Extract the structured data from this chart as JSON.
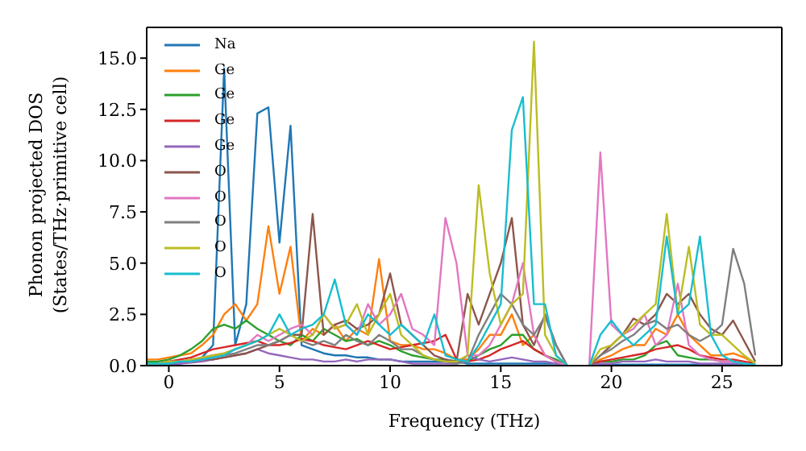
{
  "chart_data": {
    "type": "line",
    "xlabel": "Frequency (THz)",
    "ylabel": "Phonon projected DOS\n(States/THz·primitive cell)",
    "legend": "top left",
    "xlim": [
      -1,
      27.7
    ],
    "xticks": [
      0,
      5,
      10,
      15,
      20,
      25
    ],
    "ylim": [
      0,
      16.5
    ],
    "yticks": [
      {
        "value": 0,
        "label": "0.0"
      },
      2.5,
      {
        "value": 5,
        "label": "5.0"
      },
      7.5,
      {
        "value": 10,
        "label": "10.0"
      },
      12.5,
      {
        "value": 15,
        "label": "15.0"
      }
    ],
    "x": [
      -1,
      -0.5,
      0,
      0.5,
      1,
      1.5,
      2,
      2.5,
      3,
      3.5,
      4,
      4.5,
      5,
      5.5,
      6,
      6.5,
      7,
      7.5,
      8,
      8.5,
      9,
      9.5,
      10,
      10.5,
      11,
      11.5,
      12,
      12.5,
      13,
      13.5,
      14,
      14.5,
      15,
      15.5,
      16,
      16.5,
      17,
      17.5,
      18,
      18.5,
      19,
      19.5,
      20,
      20.5,
      21,
      21.5,
      22,
      22.5,
      23,
      23.5,
      24,
      24.5,
      25,
      25.5,
      26,
      26.5
    ],
    "series": [
      {
        "name": "Na",
        "color": "#1f77b4",
        "values": [
          0.05,
          0.05,
          0.05,
          0.1,
          0.2,
          0.4,
          1.0,
          14.5,
          1.0,
          3.0,
          12.3,
          12.6,
          6.0,
          11.7,
          1.0,
          0.8,
          0.6,
          0.5,
          0.5,
          0.4,
          0.4,
          0.3,
          0.3,
          0.2,
          0.2,
          0.2,
          0.2,
          0.2,
          0.2,
          0.1,
          0.1,
          0.1,
          0.1,
          0.1,
          0.1,
          0.1,
          0.1,
          0.1,
          0,
          null,
          0,
          0.05,
          0.05,
          0.05,
          0.05,
          0.05,
          0.05,
          0.05,
          0.05,
          0.05,
          0.05,
          0.05,
          0.05,
          0.05,
          0.05,
          0.05
        ]
      },
      {
        "name": "Ge",
        "color": "#ff7f0e",
        "values": [
          0.3,
          0.3,
          0.4,
          0.5,
          0.6,
          1.0,
          1.5,
          2.5,
          3.0,
          2.2,
          3.0,
          6.8,
          3.5,
          5.8,
          1.2,
          1.8,
          1.5,
          2.0,
          1.2,
          1.8,
          1.5,
          5.2,
          1.2,
          1.0,
          1.0,
          0.8,
          0.8,
          0.6,
          0.3,
          0.3,
          0.8,
          1.5,
          1.5,
          2.5,
          1.0,
          1.5,
          0.5,
          0.2,
          0,
          null,
          0,
          0.3,
          0.5,
          0.8,
          1.0,
          1.0,
          1.8,
          1.5,
          2.5,
          1.5,
          1.0,
          0.5,
          0.5,
          0.6,
          0.4,
          0.1
        ]
      },
      {
        "name": "Ge",
        "color": "#2ca02c",
        "values": [
          0.2,
          0.2,
          0.3,
          0.5,
          0.8,
          1.2,
          1.8,
          2.0,
          1.8,
          2.2,
          1.8,
          1.5,
          1.2,
          1.0,
          1.5,
          1.2,
          1.8,
          1.5,
          1.2,
          1.3,
          1.0,
          1.2,
          1.0,
          0.7,
          0.5,
          0.4,
          0.3,
          0.3,
          0.2,
          0.2,
          0.5,
          0.8,
          1.0,
          1.5,
          1.5,
          0.8,
          0.5,
          0.3,
          0,
          null,
          0,
          0.2,
          0.2,
          0.3,
          0.3,
          0.5,
          1.0,
          1.2,
          0.5,
          0.4,
          0.3,
          0.3,
          0.2,
          0.2,
          0.1,
          0.05
        ]
      },
      {
        "name": "Ge",
        "color": "#d62728",
        "values": [
          0.1,
          0.1,
          0.2,
          0.3,
          0.4,
          0.6,
          0.8,
          0.9,
          1.0,
          1.1,
          1.2,
          1.0,
          1.0,
          1.1,
          1.3,
          1.2,
          1.0,
          0.9,
          0.8,
          1.0,
          1.2,
          1.0,
          0.8,
          0.9,
          1.0,
          1.1,
          1.2,
          1.5,
          0.3,
          0.2,
          0.3,
          0.5,
          0.8,
          1.0,
          1.2,
          0.8,
          0.5,
          0.2,
          0,
          null,
          0,
          0.2,
          0.3,
          0.4,
          0.5,
          0.6,
          0.8,
          0.9,
          1.0,
          0.8,
          0.5,
          0.4,
          0.3,
          0.3,
          0.2,
          0.1
        ]
      },
      {
        "name": "Ge",
        "color": "#9467bd",
        "values": [
          0.05,
          0.05,
          0.1,
          0.1,
          0.15,
          0.2,
          0.3,
          0.4,
          0.5,
          0.6,
          0.8,
          0.6,
          0.5,
          0.4,
          0.3,
          0.3,
          0.2,
          0.2,
          0.3,
          0.2,
          0.3,
          0.3,
          0.3,
          0.2,
          0.1,
          0.1,
          0.1,
          0.1,
          0.1,
          0.5,
          0.3,
          0.2,
          0.3,
          0.4,
          0.3,
          0.2,
          0.2,
          0.1,
          0,
          null,
          0,
          0.1,
          0.1,
          0.2,
          0.2,
          0.2,
          0.3,
          0.2,
          0.2,
          0.2,
          0.1,
          0.1,
          0.1,
          0.1,
          0.1,
          0.05
        ]
      },
      {
        "name": "O",
        "color": "#8c564b",
        "values": [
          null,
          null,
          0.1,
          0.2,
          0.2,
          0.3,
          0.3,
          0.4,
          0.5,
          0.6,
          0.8,
          1.0,
          1.2,
          1.5,
          1.5,
          7.4,
          1.5,
          2.0,
          2.2,
          1.8,
          2.0,
          2.5,
          4.5,
          2.0,
          1.5,
          1.0,
          0.5,
          0.3,
          0.2,
          3.5,
          2.0,
          3.5,
          5.0,
          7.2,
          2.0,
          1.0,
          2.5,
          1.0,
          0,
          null,
          0,
          0.5,
          1.0,
          1.5,
          2.3,
          2.0,
          2.5,
          3.5,
          3.0,
          3.5,
          2.5,
          1.8,
          1.5,
          2.2,
          1.2,
          0.2
        ]
      },
      {
        "name": "O",
        "color": "#e377c2",
        "values": [
          null,
          null,
          0.2,
          0.2,
          0.3,
          0.4,
          0.5,
          0.6,
          0.8,
          1.0,
          1.5,
          1.2,
          1.5,
          1.8,
          2.0,
          1.5,
          2.5,
          1.8,
          2.0,
          1.5,
          3.0,
          2.0,
          2.5,
          3.5,
          1.8,
          1.5,
          1.0,
          7.2,
          5.0,
          0.5,
          0.5,
          1.0,
          2.0,
          3.0,
          5.0,
          1.5,
          0.5,
          0.2,
          0,
          null,
          0,
          10.4,
          2.0,
          1.5,
          1.8,
          2.5,
          1.0,
          1.5,
          4.0,
          1.0,
          0.5,
          0.3,
          0.2,
          0.2,
          0.1,
          0.05
        ]
      },
      {
        "name": "O",
        "color": "#7f7f7f",
        "values": [
          0.1,
          0.1,
          0.1,
          0.2,
          0.2,
          0.3,
          0.4,
          0.5,
          0.6,
          0.8,
          1.0,
          1.0,
          1.2,
          1.5,
          1.2,
          1.0,
          1.2,
          1.0,
          1.5,
          1.2,
          1.0,
          1.5,
          1.2,
          0.8,
          0.8,
          0.5,
          0.3,
          0.2,
          0.1,
          0.2,
          1.5,
          2.5,
          3.5,
          3.0,
          2.0,
          1.5,
          2.4,
          1.0,
          0,
          null,
          0,
          0.5,
          0.8,
          1.2,
          1.5,
          2.0,
          2.2,
          1.8,
          2.0,
          1.5,
          1.2,
          1.5,
          2.0,
          5.7,
          4.0,
          0.5
        ]
      },
      {
        "name": "O",
        "color": "#bcbd22",
        "values": [
          0.1,
          0.1,
          0.2,
          0.2,
          0.3,
          0.4,
          0.5,
          0.6,
          0.8,
          1.0,
          1.2,
          1.5,
          1.8,
          1.5,
          1.2,
          1.5,
          2.5,
          1.8,
          2.0,
          3.0,
          1.5,
          2.5,
          3.5,
          1.5,
          1.0,
          0.5,
          0.3,
          0.2,
          0.2,
          0.5,
          8.8,
          4.5,
          2.0,
          3.0,
          3.5,
          15.8,
          1.5,
          0.5,
          0,
          null,
          0,
          0.8,
          1.0,
          1.5,
          2.0,
          2.5,
          3.0,
          7.4,
          2.5,
          5.8,
          2.0,
          1.5,
          1.5,
          1.0,
          0.5,
          0.1
        ]
      },
      {
        "name": "O",
        "color": "#17becf",
        "values": [
          0.1,
          0.1,
          0.1,
          0.2,
          0.2,
          0.3,
          0.4,
          0.5,
          0.8,
          1.0,
          1.2,
          1.5,
          2.5,
          1.5,
          1.8,
          2.0,
          2.5,
          4.2,
          2.0,
          1.5,
          2.5,
          2.0,
          1.5,
          2.0,
          1.5,
          1.0,
          2.5,
          0.5,
          0.3,
          0.2,
          1.0,
          2.0,
          3.0,
          11.5,
          13.1,
          3.0,
          3.0,
          0.5,
          0,
          null,
          0,
          1.5,
          2.2,
          1.5,
          1.0,
          1.5,
          2.0,
          6.3,
          2.5,
          3.0,
          6.3,
          1.5,
          0.5,
          0.2,
          0.1,
          0.05
        ]
      }
    ]
  }
}
